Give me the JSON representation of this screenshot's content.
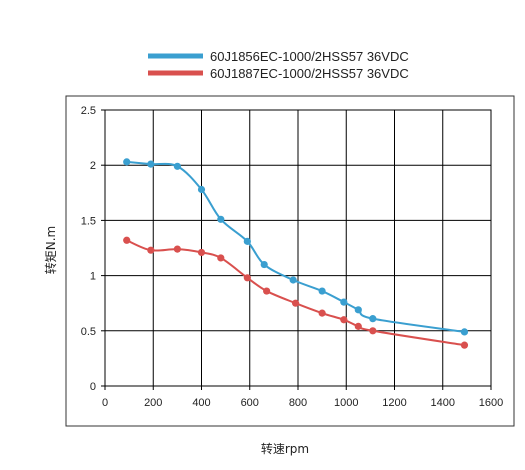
{
  "chart_data": {
    "type": "line",
    "title": "",
    "xlabel": "转速rpm",
    "ylabel": "转矩N.m",
    "xlim": [
      0,
      1600
    ],
    "ylim": [
      0,
      2.5
    ],
    "x_ticks": [
      0,
      200,
      400,
      600,
      800,
      1000,
      1200,
      1400,
      1600
    ],
    "y_ticks": [
      0,
      0.5,
      1,
      1.5,
      2,
      2.5
    ],
    "x_tick_labels": [
      "0",
      "200",
      "400",
      "600",
      "800",
      "1000",
      "1200",
      "1400",
      "1600"
    ],
    "y_tick_labels": [
      "0",
      "0.5",
      "1",
      "1.5",
      "2",
      "2.5"
    ],
    "grid": true,
    "legend_position": "top",
    "series": [
      {
        "name": "60J1856EC-1000/2HSS57  36VDC",
        "color": "#3a9fd0",
        "x": [
          90,
          190,
          300,
          400,
          480,
          590,
          660,
          780,
          900,
          990,
          1050,
          1110,
          1490
        ],
        "y": [
          2.03,
          2.01,
          1.99,
          1.78,
          1.51,
          1.31,
          1.1,
          0.96,
          0.86,
          0.76,
          0.69,
          0.61,
          0.49
        ]
      },
      {
        "name": "60J1887EC-1000/2HSS57  36VDC",
        "color": "#d9504e",
        "x": [
          90,
          190,
          300,
          400,
          480,
          590,
          670,
          790,
          900,
          990,
          1050,
          1110,
          1490
        ],
        "y": [
          1.32,
          1.23,
          1.24,
          1.21,
          1.16,
          0.98,
          0.86,
          0.75,
          0.66,
          0.6,
          0.54,
          0.5,
          0.37
        ]
      }
    ]
  }
}
